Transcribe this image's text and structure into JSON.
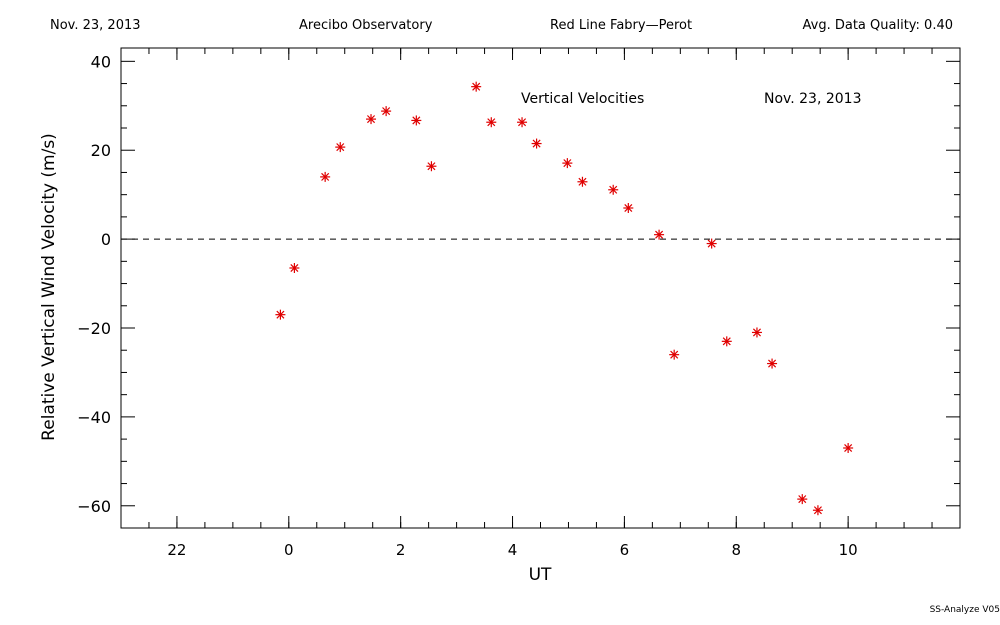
{
  "header": {
    "date": "Nov. 23, 2013",
    "site": "Arecibo Observatory",
    "instrument": "Red Line Fabry—Perot",
    "quality": "Avg. Data Quality: 0.40"
  },
  "footer": "SS-Analyze V05",
  "chart_data": {
    "type": "scatter",
    "title": "Vertical Velocities",
    "annotation": "Nov. 23, 2013",
    "xlabel": "UT",
    "ylabel": "Relative Vertical Wind Velocity (m/s)",
    "xlim": [
      -3,
      12
    ],
    "ylim": [
      -65,
      43
    ],
    "x_ticks": [
      22,
      0,
      2,
      4,
      6,
      8,
      10
    ],
    "x_tick_positions": [
      -2,
      0,
      2,
      4,
      6,
      8,
      10
    ],
    "y_ticks": [
      40,
      20,
      0,
      -20,
      -40,
      -60
    ],
    "zero_line": "dashed",
    "marker": "asterisk",
    "color": "#e00000",
    "x": [
      -0.15,
      0.1,
      0.65,
      0.92,
      1.47,
      1.74,
      2.28,
      2.55,
      3.35,
      3.62,
      4.17,
      4.43,
      4.98,
      5.25,
      5.8,
      6.07,
      6.62,
      6.89,
      7.56,
      7.83,
      8.37,
      8.64,
      9.18,
      9.46,
      10.0
    ],
    "y": [
      -17,
      -6.5,
      14,
      20.7,
      27,
      28.8,
      26.7,
      16.4,
      34.3,
      26.3,
      26.3,
      21.5,
      17.1,
      12.9,
      11.1,
      7,
      1,
      -26,
      -1,
      -23,
      -21,
      -28,
      -58.5,
      -61,
      -47
    ]
  }
}
